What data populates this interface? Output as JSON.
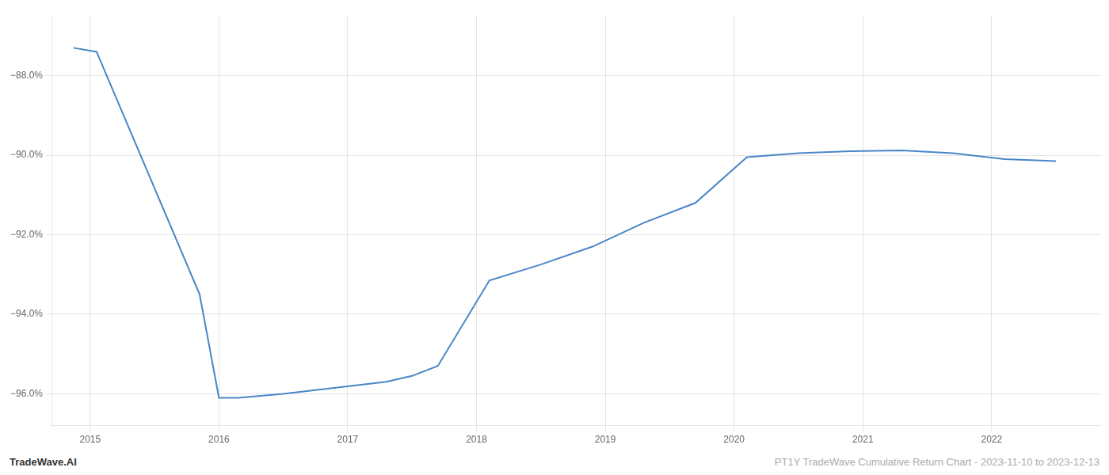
{
  "chart_data": {
    "type": "line",
    "x": [
      2014.87,
      2015.05,
      2015.85,
      2016.0,
      2016.15,
      2016.5,
      2017.3,
      2017.5,
      2017.7,
      2018.1,
      2018.5,
      2018.9,
      2019.3,
      2019.7,
      2020.1,
      2020.5,
      2020.9,
      2021.3,
      2021.7,
      2022.1,
      2022.5
    ],
    "values": [
      -87.3,
      -87.4,
      -93.5,
      -96.1,
      -96.1,
      -96.0,
      -95.7,
      -95.55,
      -95.3,
      -93.15,
      -92.75,
      -92.3,
      -91.7,
      -91.2,
      -90.05,
      -89.95,
      -89.9,
      -89.88,
      -89.95,
      -90.1,
      -90.15
    ],
    "color": "#4a86c8",
    "xlim": [
      2014.7,
      2022.85
    ],
    "ylim": [
      -96.8,
      -86.5
    ],
    "xticks": [
      2015,
      2016,
      2017,
      2018,
      2019,
      2020,
      2021,
      2022
    ],
    "yticks": [
      {
        "value": -88.0,
        "label": "−88.0%"
      },
      {
        "value": -90.0,
        "label": "−90.0%"
      },
      {
        "value": -92.0,
        "label": "−92.0%"
      },
      {
        "value": -94.0,
        "label": "−94.0%"
      },
      {
        "value": -96.0,
        "label": "−96.0%"
      }
    ],
    "grid": true,
    "annotations": [
      "TradeWave.AI",
      "PT1Y TradeWave Cumulative Return Chart - 2023-11-10 to 2023-12-13"
    ]
  }
}
